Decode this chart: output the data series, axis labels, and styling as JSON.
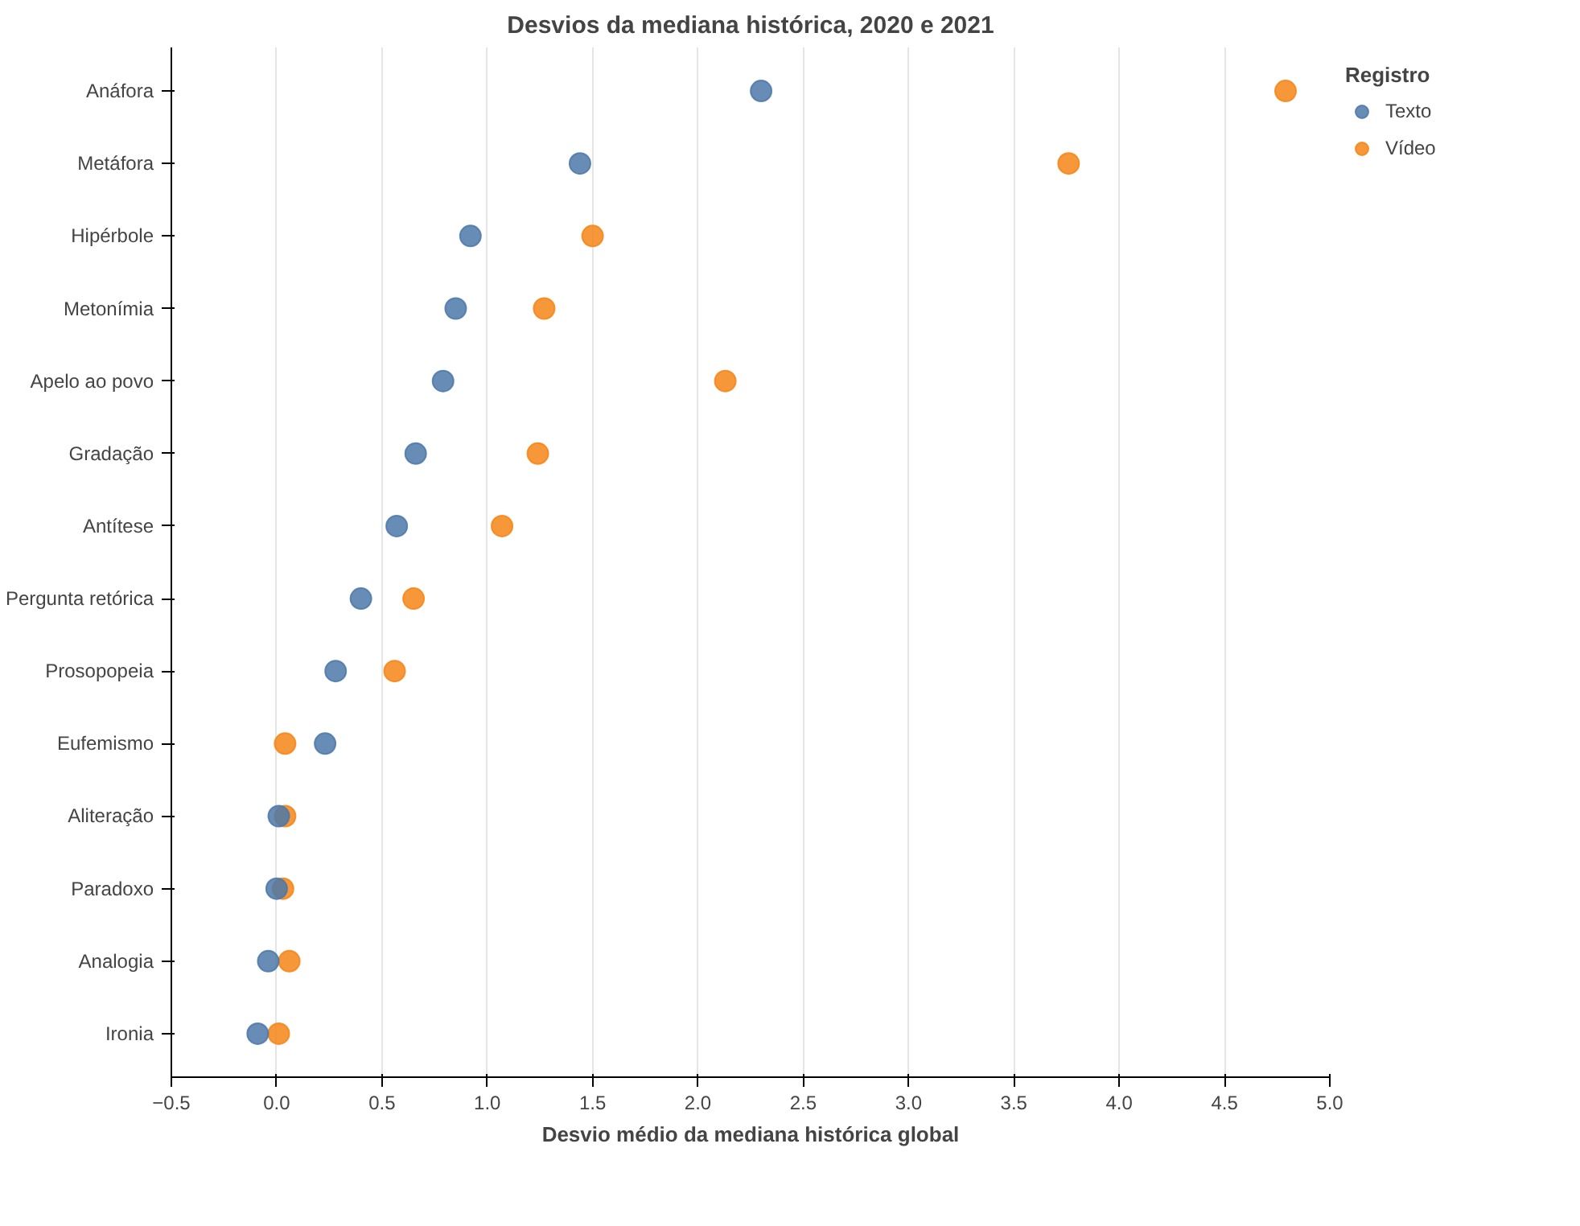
{
  "chart_data": {
    "type": "scatter",
    "title": "Desvios da mediana histórica, 2020 e 2021",
    "xlabel": "Desvio médio da mediana histórica global",
    "legend_title": "Registro",
    "categories": [
      "Anáfora",
      "Metáfora",
      "Hipérbole",
      "Metonímia",
      "Apelo ao povo",
      "Gradação",
      "Antítese",
      "Pergunta retórica",
      "Prosopopeia",
      "Eufemismo",
      "Aliteração",
      "Paradoxo",
      "Analogia",
      "Ironia"
    ],
    "orientation": "horizontal",
    "series": [
      {
        "name": "Texto",
        "color": "#4c78a8",
        "values": [
          2.3,
          1.44,
          0.92,
          0.85,
          0.79,
          0.66,
          0.57,
          0.4,
          0.28,
          0.23,
          0.01,
          0.0,
          -0.04,
          -0.09
        ]
      },
      {
        "name": "Vídeo",
        "color": "#f58518",
        "values": [
          4.79,
          3.76,
          1.5,
          1.27,
          2.13,
          1.24,
          1.07,
          0.65,
          0.56,
          0.04,
          0.04,
          0.03,
          0.06,
          0.01
        ]
      }
    ],
    "xlim": [
      -0.5,
      5.0
    ],
    "xticks": [
      {
        "value": -0.5,
        "label": "−0.5"
      },
      {
        "value": 0,
        "label": "0.0"
      },
      0.5,
      {
        "value": 1,
        "label": "1.0"
      },
      1.5,
      {
        "value": 2,
        "label": "2.0"
      },
      2.5,
      {
        "value": 3,
        "label": "3.0"
      },
      3.5,
      {
        "value": 4,
        "label": "4.0"
      },
      4.5,
      {
        "value": 5,
        "label": "5.0"
      }
    ],
    "grid": "x",
    "legend": "top right",
    "marker": "circle"
  }
}
